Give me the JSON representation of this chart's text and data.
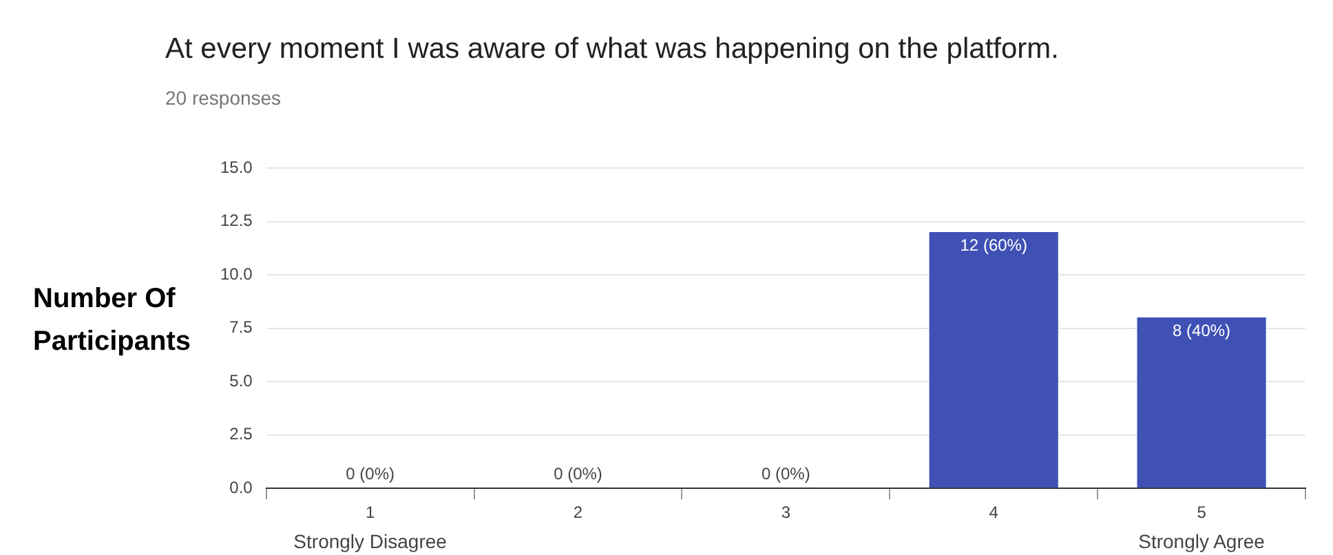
{
  "chart_data": {
    "type": "bar",
    "title": "At every moment I was aware of what was happening on the platform.",
    "subtitle": "20 responses",
    "ylabel": "Number Of Participants",
    "categories": [
      "1",
      "2",
      "3",
      "4",
      "5"
    ],
    "values": [
      0,
      0,
      0,
      12,
      8
    ],
    "value_labels": [
      "0 (0%)",
      "0 (0%)",
      "0 (0%)",
      "12 (60%)",
      "8 (40%)"
    ],
    "color": "#3f51b5",
    "ylim": [
      0,
      15
    ],
    "yticks": [
      {
        "value": 0,
        "label": "0.0"
      },
      2.5,
      {
        "value": 5,
        "label": "5.0"
      },
      7.5,
      {
        "value": 10,
        "label": "10.0"
      },
      12.5,
      {
        "value": 15,
        "label": "15.0"
      }
    ],
    "grid": "y",
    "legend": false,
    "annotations": [
      "Strongly Disagree",
      "Strongly Agree"
    ]
  }
}
